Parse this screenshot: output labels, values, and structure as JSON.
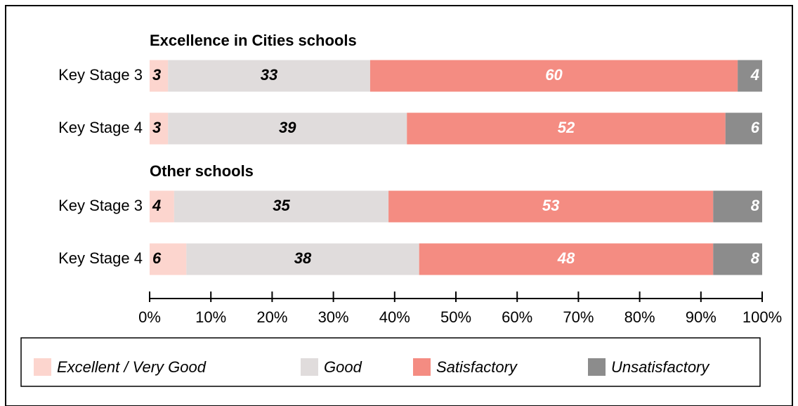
{
  "chart_data": {
    "type": "stacked_bar",
    "orientation": "horizontal",
    "group_labels": [
      "Excellence in Cities schools",
      "Other schools"
    ],
    "categories": [
      "Key Stage 3",
      "Key Stage 4",
      "Key Stage 3",
      "Key Stage 4"
    ],
    "series": [
      {
        "name": "Excellent / Very Good",
        "color": "#fcd5ce",
        "label_color": "#000000",
        "values": [
          3,
          3,
          4,
          6
        ]
      },
      {
        "name": "Good",
        "color": "#e0dcdc",
        "label_color": "#000000",
        "values": [
          33,
          39,
          35,
          38
        ]
      },
      {
        "name": "Satisfactory",
        "color": "#f48c82",
        "label_color": "#ffffff",
        "values": [
          60,
          52,
          53,
          48
        ]
      },
      {
        "name": "Unsatisfactory",
        "color": "#8c8c8c",
        "label_color": "#ffffff",
        "values": [
          4,
          6,
          8,
          8
        ]
      }
    ],
    "xlim": [
      0,
      100
    ],
    "xticks": [
      {
        "value": 0,
        "label": "0%"
      },
      {
        "value": 10,
        "label": "10%"
      },
      {
        "value": 20,
        "label": "20%"
      },
      {
        "value": 30,
        "label": "30%"
      },
      {
        "value": 40,
        "label": "40%"
      },
      {
        "value": 50,
        "label": "50%"
      },
      {
        "value": 60,
        "label": "60%"
      },
      {
        "value": 70,
        "label": "70%"
      },
      {
        "value": 80,
        "label": "80%"
      },
      {
        "value": 90,
        "label": "90%"
      },
      {
        "value": 100,
        "label": "100%"
      }
    ],
    "legend": "bottom"
  }
}
